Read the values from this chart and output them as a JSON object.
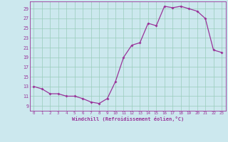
{
  "x": [
    0,
    1,
    2,
    3,
    4,
    5,
    6,
    7,
    8,
    9,
    10,
    11,
    12,
    13,
    14,
    15,
    16,
    17,
    18,
    19,
    20,
    21,
    22,
    23
  ],
  "y": [
    13,
    12.5,
    11.5,
    11.5,
    11,
    11,
    10.5,
    9.8,
    9.5,
    10.5,
    14,
    19,
    21.5,
    22,
    26,
    25.5,
    29.5,
    29.2,
    29.5,
    29,
    28.5,
    27,
    20.5,
    20
  ],
  "line_color": "#993399",
  "background_color": "#cce8ee",
  "grid_color": "#99ccbb",
  "xlabel": "Windchill (Refroidissement éolien,°C)",
  "ytick_labels": [
    9,
    11,
    13,
    15,
    17,
    19,
    21,
    23,
    25,
    27,
    29
  ],
  "xtick_labels": [
    0,
    1,
    2,
    3,
    4,
    5,
    6,
    7,
    8,
    9,
    10,
    11,
    12,
    13,
    14,
    15,
    16,
    17,
    18,
    19,
    20,
    21,
    22,
    23
  ],
  "ylim": [
    8.0,
    30.5
  ],
  "xlim": [
    -0.5,
    23.5
  ]
}
